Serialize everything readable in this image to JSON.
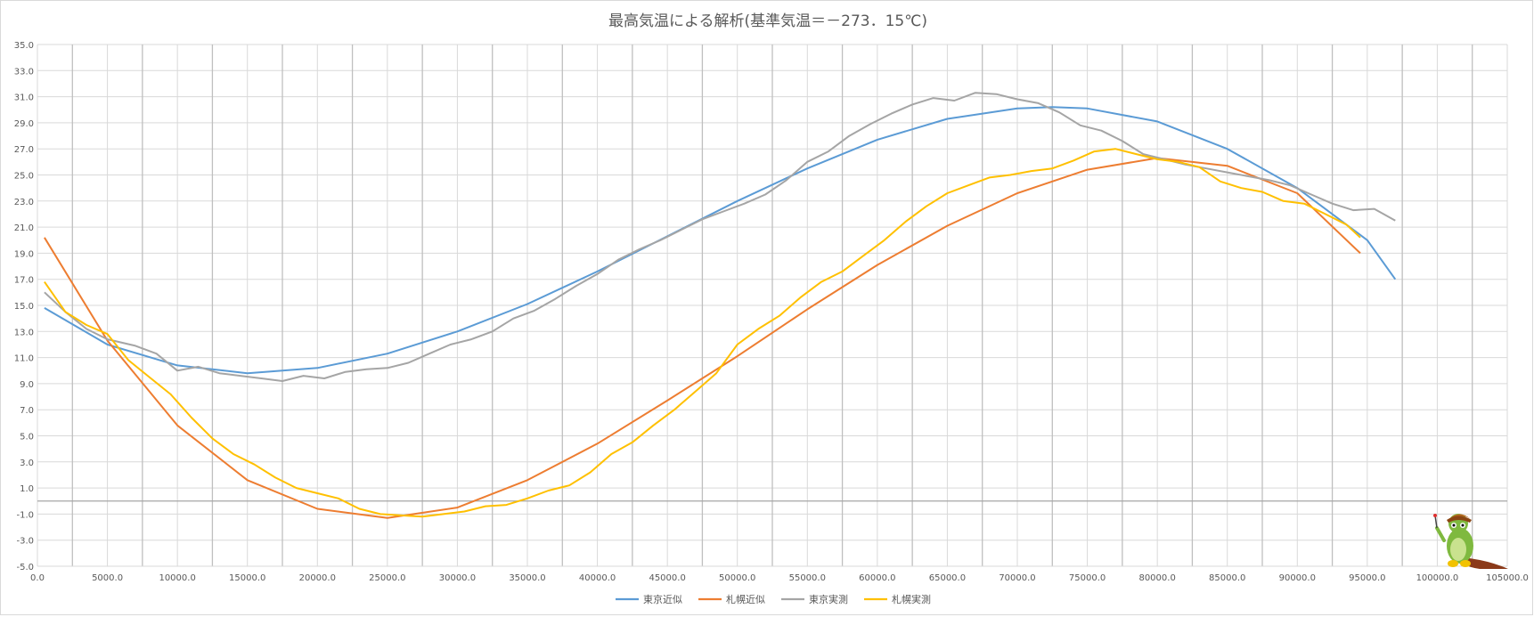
{
  "chart_data": {
    "type": "line",
    "title": "最高気温による解析(基準気温＝－273．15℃)",
    "xlabel": "",
    "ylabel": "",
    "xlim": [
      0,
      105000
    ],
    "ylim": [
      -5,
      35
    ],
    "x_ticks": [
      "0.0",
      "5000.0",
      "10000.0",
      "15000.0",
      "20000.0",
      "25000.0",
      "30000.0",
      "35000.0",
      "40000.0",
      "45000.0",
      "50000.0",
      "55000.0",
      "60000.0",
      "65000.0",
      "70000.0",
      "75000.0",
      "80000.0",
      "85000.0",
      "90000.0",
      "95000.0",
      "100000.0",
      "105000.0"
    ],
    "y_ticks": [
      "-5.0",
      "-3.0",
      "-1.0",
      "1.0",
      "3.0",
      "5.0",
      "7.0",
      "9.0",
      "11.0",
      "13.0",
      "15.0",
      "17.0",
      "19.0",
      "21.0",
      "23.0",
      "25.0",
      "27.0",
      "29.0",
      "31.0",
      "33.0",
      "35.0"
    ],
    "legend_position": "bottom",
    "series": [
      {
        "name": "東京近似",
        "color": "#5b9bd5",
        "x": [
          500,
          5000,
          10000,
          15000,
          20000,
          25000,
          30000,
          35000,
          40000,
          45000,
          50000,
          55000,
          60000,
          65000,
          70000,
          72500,
          75000,
          80000,
          85000,
          90000,
          95000,
          97000
        ],
        "y": [
          14.8,
          12.0,
          10.4,
          9.8,
          10.2,
          11.3,
          13.0,
          15.1,
          17.6,
          20.3,
          23.0,
          25.5,
          27.7,
          29.3,
          30.1,
          30.2,
          30.1,
          29.1,
          27.0,
          24.0,
          20.0,
          17.0
        ]
      },
      {
        "name": "札幌近似",
        "color": "#ed7d31",
        "x": [
          500,
          5000,
          10000,
          15000,
          20000,
          25000,
          30000,
          35000,
          40000,
          45000,
          50000,
          55000,
          60000,
          65000,
          70000,
          75000,
          80000,
          85000,
          90000,
          94500
        ],
        "y": [
          20.2,
          12.3,
          5.8,
          1.6,
          -0.6,
          -1.3,
          -0.5,
          1.6,
          4.4,
          7.7,
          11.1,
          14.7,
          18.1,
          21.1,
          23.6,
          25.4,
          26.3,
          25.7,
          23.6,
          19.0
        ]
      },
      {
        "name": "東京実測",
        "color": "#a5a5a5",
        "x": [
          500,
          2000,
          3500,
          5000,
          7000,
          8500,
          10000,
          11500,
          13000,
          14500,
          16000,
          17500,
          19000,
          20500,
          22000,
          23500,
          25000,
          26500,
          28000,
          29500,
          31000,
          32500,
          34000,
          35500,
          37000,
          38500,
          40000,
          41500,
          43000,
          44500,
          46000,
          47500,
          49000,
          50500,
          52000,
          53500,
          55000,
          56500,
          58000,
          59500,
          61000,
          62500,
          64000,
          65500,
          67000,
          68500,
          70000,
          71500,
          73000,
          74500,
          76000,
          77500,
          79000,
          80500,
          82000,
          83500,
          85000,
          86500,
          88000,
          89500,
          91000,
          92500,
          94000,
          95500,
          97000
        ],
        "y": [
          16.0,
          14.5,
          13.2,
          12.4,
          11.9,
          11.3,
          10.0,
          10.3,
          9.8,
          9.6,
          9.4,
          9.2,
          9.6,
          9.4,
          9.9,
          10.1,
          10.2,
          10.6,
          11.3,
          12.0,
          12.4,
          13.0,
          14.0,
          14.6,
          15.5,
          16.5,
          17.4,
          18.5,
          19.3,
          20.0,
          20.8,
          21.6,
          22.2,
          22.8,
          23.5,
          24.6,
          26.0,
          26.8,
          28.0,
          28.9,
          29.7,
          30.4,
          30.9,
          30.7,
          31.3,
          31.2,
          30.8,
          30.5,
          29.8,
          28.8,
          28.4,
          27.6,
          26.6,
          26.2,
          25.8,
          25.5,
          25.2,
          24.9,
          24.6,
          24.2,
          23.5,
          22.8,
          22.3,
          22.4,
          21.5
        ]
      },
      {
        "name": "札幌実測",
        "color": "#ffc000",
        "x": [
          500,
          2000,
          3500,
          5000,
          6500,
          8000,
          9500,
          11000,
          12500,
          14000,
          15500,
          17000,
          18500,
          20000,
          21500,
          23000,
          24500,
          26000,
          27500,
          29000,
          30500,
          32000,
          33500,
          35000,
          36500,
          38000,
          39500,
          41000,
          42500,
          44000,
          45500,
          47000,
          48500,
          50000,
          51500,
          53000,
          54500,
          56000,
          57500,
          59000,
          60500,
          62000,
          63500,
          65000,
          66500,
          68000,
          69500,
          71000,
          72500,
          74000,
          75500,
          77000,
          78500,
          80000,
          81500,
          83000,
          84500,
          86000,
          87500,
          89000,
          90500,
          92000,
          93500,
          94500
        ],
        "y": [
          16.8,
          14.5,
          13.5,
          12.8,
          10.8,
          9.5,
          8.2,
          6.4,
          4.8,
          3.6,
          2.8,
          1.8,
          1.0,
          0.6,
          0.2,
          -0.6,
          -1.0,
          -1.1,
          -1.2,
          -1.0,
          -0.8,
          -0.4,
          -0.3,
          0.2,
          0.8,
          1.2,
          2.2,
          3.6,
          4.5,
          5.8,
          7.0,
          8.4,
          9.8,
          12.0,
          13.2,
          14.2,
          15.6,
          16.8,
          17.6,
          18.8,
          20.0,
          21.4,
          22.6,
          23.6,
          24.2,
          24.8,
          25.0,
          25.3,
          25.5,
          26.1,
          26.8,
          27.0,
          26.6,
          26.2,
          26.0,
          25.6,
          24.5,
          24.0,
          23.7,
          23.0,
          22.8,
          22.0,
          21.2,
          20.2
        ]
      }
    ]
  }
}
